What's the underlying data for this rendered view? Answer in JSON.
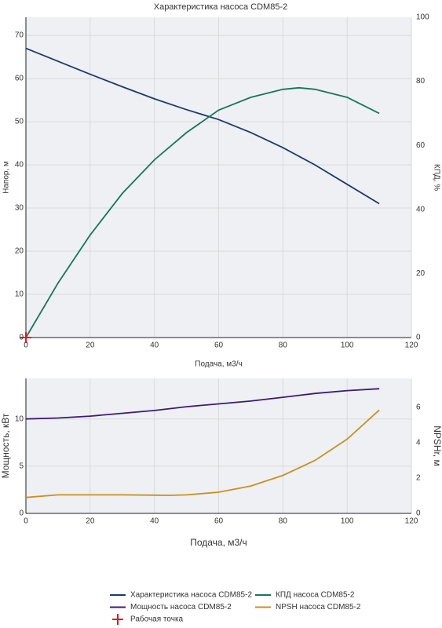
{
  "chart_data": [
    {
      "type": "line",
      "title": "Характеристика насоса CDM85-2",
      "x_label": "Подача, м3/ч",
      "y_label": "Напор, м",
      "y2_label": "КПД, %",
      "xlim": [
        0,
        120
      ],
      "xticks": [
        0,
        20,
        40,
        60,
        80,
        100,
        120
      ],
      "ylim": [
        0,
        74.2
      ],
      "yticks": [
        0,
        10,
        20,
        30,
        40,
        50,
        60,
        70
      ],
      "y2lim": [
        0,
        100
      ],
      "y2ticks": [
        0,
        20,
        40,
        60,
        80,
        100
      ],
      "grid": true,
      "series": [
        {
          "name": "Характеристика насоса CDM85-2",
          "color": "#1b3a72",
          "x": [
            0,
            10,
            20,
            30,
            40,
            50,
            60,
            70,
            80,
            90,
            100,
            110
          ],
          "values": [
            67,
            64,
            61,
            58.1,
            55.3,
            52.8,
            50.5,
            47.5,
            44,
            40,
            35.5,
            31
          ]
        },
        {
          "name": "КПД насоса CDM85-2",
          "color": "#15775a",
          "axis": "y2",
          "x": [
            0,
            10,
            20,
            30,
            40,
            50,
            60,
            70,
            80,
            85,
            90,
            100,
            110
          ],
          "values": [
            0,
            17,
            32,
            45,
            55.5,
            64,
            71,
            75,
            77.5,
            78,
            77.5,
            75,
            70
          ]
        },
        {
          "name": "Рабочая точка",
          "color": "#e8141c",
          "marker": "cross",
          "x": [
            0
          ],
          "values": [
            0
          ]
        }
      ]
    },
    {
      "type": "line",
      "x_label": "Подача, м3/ч",
      "y_label": "Мощность, кВт",
      "y2_label": "NPSHr, м",
      "xlim": [
        0,
        120
      ],
      "xticks": [
        0,
        20,
        40,
        60,
        80,
        100,
        120
      ],
      "ylim": [
        0,
        14.3
      ],
      "yticks": [
        0,
        5,
        10
      ],
      "y2lim": [
        0,
        7.64
      ],
      "y2ticks": [
        0,
        2,
        4,
        6
      ],
      "grid": true,
      "series": [
        {
          "name": "Мощность насоса CDM85-2",
          "color": "#3e1a78",
          "x": [
            0,
            10,
            20,
            30,
            40,
            50,
            60,
            70,
            80,
            90,
            100,
            110
          ],
          "values": [
            10.0,
            10.1,
            10.3,
            10.6,
            10.9,
            11.3,
            11.6,
            11.9,
            12.3,
            12.7,
            13.0,
            13.2
          ]
        },
        {
          "name": "NPSH насоса CDM85-2",
          "color": "#c8921c",
          "axis": "y2",
          "x": [
            0,
            10,
            20,
            30,
            40,
            45,
            50,
            60,
            70,
            80,
            90,
            100,
            110
          ],
          "values": [
            0.9,
            1.05,
            1.05,
            1.05,
            1.03,
            1.02,
            1.05,
            1.2,
            1.55,
            2.15,
            3.0,
            4.2,
            5.85
          ]
        }
      ]
    }
  ]
}
